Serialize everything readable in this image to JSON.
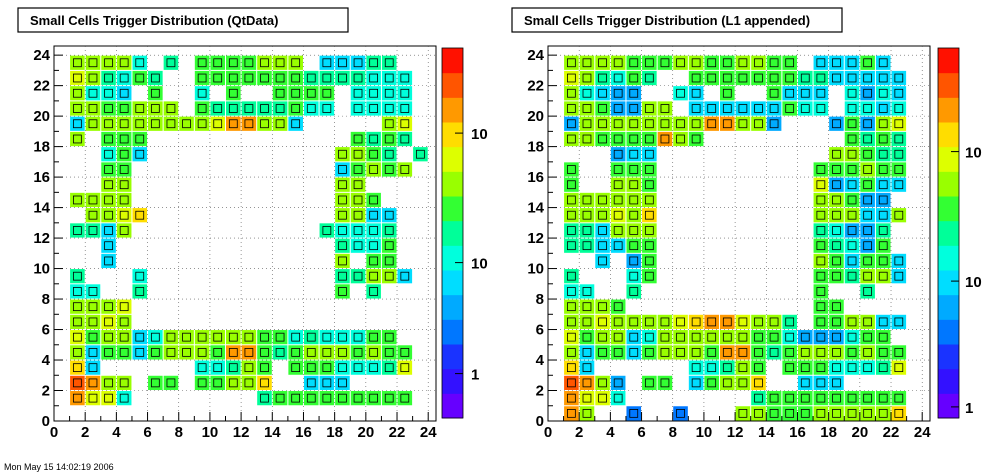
{
  "chart_data": [
    {
      "type": "heatmap",
      "title": "Small Cells Trigger Distribution (QtData)",
      "xlim": [
        0,
        24.5
      ],
      "ylim": [
        0,
        24.6
      ],
      "x_ticks": [
        0,
        2,
        4,
        6,
        8,
        10,
        12,
        14,
        16,
        18,
        20,
        22,
        24
      ],
      "y_ticks": [
        0,
        2,
        4,
        6,
        8,
        10,
        12,
        14,
        16,
        18,
        20,
        22,
        24
      ],
      "z_scale": "log",
      "z_ticks": [
        {
          "label": "1",
          "frac": 0.12
        },
        {
          "label": "10",
          "frac": 0.42
        },
        {
          "label": "10",
          "frac": 0.77
        }
      ],
      "grid": true,
      "box_text": true,
      "cells": "1,1,1.5;2,1,1.3;3,1,1.3;4,1,0.8;13,1,0.9;14,1,1.0;15,1,1.0;16,1,1.0;17,1,1.0;18,1,1.0;19,1,1.0;20,1,1.0;21,1,1.0;22,1,1.0;1,2,1.7;2,2,1.5;3,2,1.1;4,2,1.1;6,2,1.0;7,2,1.0;9,2,1.0;10,2,1.0;11,2,1.2;12,2,1.2;13,2,1.4;16,2,0.6;17,2,0.6;18,2,0.6;1,3,1.4;2,3,0.7;9,3,0.8;10,3,0.8;11,3,0.9;12,3,1.1;13,3,1.0;15,3,1.0;16,3,1.0;17,3,1.0;18,3,0.8;19,3,0.8;20,3,0.8;21,3,0.9;22,3,1.3;1,4,1.1;2,4,0.7;3,4,1.0;4,4,1.0;5,4,0.6;6,4,1.0;7,4,1.1;8,4,1.1;9,4,1.1;10,4,1.0;11,4,1.5;12,4,1.5;13,4,1.0;14,4,0.9;15,4,1.0;16,4,1.2;17,4,1.2;18,4,1.2;19,4,1.0;20,4,1.2;21,4,1.0;22,4,1.0;1,5,1.3;2,5,1.0;3,5,1.1;4,5,1.1;5,5,0.7;6,5,0.8;7,5,1.2;8,5,1.2;9,5,1.2;10,5,1.2;11,5,1.2;12,5,1.2;13,5,1.0;14,5,1.0;15,5,0.8;16,5,0.9;17,5,0.8;18,5,0.8;19,5,0.8;20,5,1.0;21,5,1.0;1,6,1.2;2,6,1.2;3,6,1.3;4,6,1.1;1,7,1.2;2,7,1.2;3,7,1.2;4,7,1.3;1,8,0.8;2,8,0.8;5,8,0.9;18,8,1.0;20,8,0.9;1,9,0.9;5,9,0.8;18,9,0.9;19,9,0.9;20,9,1.1;21,9,1.2;22,9,0.6;3,10,0.7;18,10,1.1;20,10,1.0;21,10,1.0;3,11,0.7;18,11,0.9;19,11,0.8;20,11,0.8;21,11,1.0;1,12,0.9;2,12,0.9;3,12,0.7;4,12,1.1;17,12,0.9;18,12,0.8;19,12,0.8;20,12,0.8;21,12,0.9;2,13,1.1;3,13,1.2;4,13,1.3;5,13,1.4;18,13,1.1;19,13,1.2;20,13,0.6;21,13,0.7;1,14,1.2;2,14,1.2;3,14,1.2;4,14,1.1;18,14,1.2;19,14,1.1;20,14,1.0;3,15,1.2;4,15,1.2;18,15,1.2;19,15,1.1;3,16,1.0;4,16,1.0;18,16,0.6;19,16,1.0;20,16,1.1;21,16,1.0;22,16,1.1;3,17,0.8;4,17,1.0;5,17,0.6;18,17,1.1;19,17,1.1;20,17,1.0;21,17,0.9;23,17,0.9;1,18,1.2;3,18,1.0;4,18,1.0;5,18,1.0;19,18,1.0;20,18,0.9;21,18,1.0;22,18,0.9;1,19,0.7;2,19,1.2;3,19,1.2;4,19,1.1;5,19,1.1;6,19,1.2;7,19,1.2;8,19,1.1;9,19,1.2;10,19,1.3;11,19,1.6;12,19,1.6;13,19,1.2;14,19,1.2;15,19,0.7;21,19,1.2;22,19,1.3;1,20,1.1;2,20,1.1;3,20,1.0;4,20,1.0;5,20,1.2;6,20,1.1;7,20,1.2;9,20,1.0;10,20,0.9;11,20,0.9;12,20,0.9;13,20,0.9;14,20,0.9;15,20,1.0;16,20,0.8;17,20,0.8;19,20,0.8;20,20,0.8;21,20,0.8;22,20,0.8;1,21,1.2;2,21,0.8;3,21,0.8;4,21,0.7;6,21,1.0;9,21,0.8;11,21,1.0;14,21,1.0;15,21,1.0;16,21,1.0;17,21,1.0;19,21,0.8;20,21,0.8;21,21,0.8;22,21,0.8;1,22,1.3;2,22,1.1;3,22,0.9;4,22,0.8;5,22,1.0;6,22,0.9;9,22,1.0;10,22,1.0;11,22,1.0;12,22,1.0;13,22,1.0;14,22,1.0;15,22,1.0;16,22,0.9;17,22,0.9;18,22,0.9;19,22,0.9;20,22,0.8;21,22,0.8;22,22,0.8;1,23,1.2;2,23,1.2;3,23,1.2;4,23,1.2;5,23,0.8;7,23,0.9;9,23,1.0;10,23,1.0;11,23,1.0;12,23,1.0;13,23,1.1;14,23,1.1;15,23,1.1;17,23,0.7;18,23,0.7;19,23,0.7;20,23,0.9;21,23,0.9"
    },
    {
      "type": "heatmap",
      "title": "Small Cells Trigger Distribution (L1 appended)",
      "xlim": [
        0,
        24.5
      ],
      "ylim": [
        0,
        24.6
      ],
      "x_ticks": [
        0,
        2,
        4,
        6,
        8,
        10,
        12,
        14,
        16,
        18,
        20,
        22,
        24
      ],
      "y_ticks": [
        0,
        2,
        4,
        6,
        8,
        10,
        12,
        14,
        16,
        18,
        20,
        22,
        24
      ],
      "z_scale": "log",
      "z_ticks": [
        {
          "label": "1",
          "frac": 0.03
        },
        {
          "label": "10",
          "frac": 0.37
        },
        {
          "label": "10",
          "frac": 0.72
        }
      ],
      "grid": true,
      "box_text": true,
      "cells": "1,0,1.5;2,0,1.2;5,0,0.4;8,0,0.4;12,0,1.2;13,0,1.1;14,0,1.0;15,0,1.0;16,0,1.0;17,0,1.1;18,0,1.1;19,0,1.1;20,0,1.1;21,0,1.1;22,0,1.4;1,1,1.5;2,1,1.3;3,1,1.3;4,1,0.8;13,1,0.9;14,1,1.0;15,1,1.0;16,1,1.0;17,1,1.0;18,1,1.0;19,1,1.0;20,1,1.0;21,1,1.0;22,1,1.0;1,2,1.7;2,2,1.5;3,2,1.1;4,2,0.5;6,2,1.0;7,2,1.0;9,2,0.6;10,2,1.0;11,2,1.2;12,2,1.2;13,2,1.4;16,2,0.6;17,2,0.6;18,2,0.6;1,3,1.4;2,3,0.7;9,3,0.8;10,3,0.8;11,3,0.9;12,3,1.1;13,3,1.0;15,3,1.0;16,3,1.0;17,3,1.0;18,3,0.8;19,3,0.8;20,3,0.8;21,3,0.9;22,3,1.3;1,4,1.1;2,4,0.7;3,4,1.0;4,4,1.0;5,4,0.6;6,4,1.0;7,4,1.1;8,4,1.1;9,4,1.1;10,4,1.0;11,4,1.5;12,4,1.5;13,4,1.0;14,4,0.9;15,4,1.0;16,4,1.2;17,4,1.2;18,4,1.2;19,4,1.0;20,4,1.2;21,4,1.0;22,4,1.0;1,5,1.3;2,5,1.0;3,5,1.1;4,5,1.1;5,5,0.7;6,5,0.8;7,5,1.2;8,5,1.2;9,5,1.2;10,5,1.2;11,5,1.2;12,5,1.2;13,5,1.0;14,5,1.0;15,5,0.8;16,5,0.5;17,5,0.5;18,5,0.5;19,5,0.8;20,5,1.0;21,5,1.0;1,6,1.2;2,6,1.2;3,6,1.3;4,6,1.1;5,6,1.2;6,6,1.2;7,6,1.2;8,6,1.3;9,6,1.4;10,6,1.6;11,6,1.6;12,6,1.3;13,6,1.2;14,6,1.1;15,6,0.9;17,6,1.0;18,6,1.0;19,6,1.1;20,6,1.1;21,6,0.6;22,6,0.7;1,7,1.2;2,7,1.2;3,7,1.2;4,7,1.0;17,7,1.0;18,7,1.0;1,8,0.8;2,8,0.8;5,8,0.9;17,8,1.0;20,8,0.9;1,9,0.9;5,9,0.8;6,9,1.0;17,9,1.0;18,9,1.0;19,9,0.9;20,9,1.1;21,9,1.2;22,9,0.6;3,10,0.7;5,10,0.5;6,10,1.0;17,10,1.1;18,10,1.0;19,10,0.6;20,10,1.0;21,10,1.0;22,10,0.6;1,11,0.9;2,11,0.9;3,11,0.6;4,11,0.6;5,11,1.0;6,11,1.0;17,11,1.0;18,11,0.9;19,11,0.8;20,11,0.5;21,11,1.0;1,12,0.9;2,12,0.9;3,12,0.7;4,12,1.1;5,12,1.2;6,12,1.2;17,12,0.9;18,12,0.8;19,12,0.5;20,12,0.5;21,12,0.9;1,13,1.1;2,13,1.2;3,13,1.2;4,13,1.3;5,13,1.2;6,13,1.4;17,13,1.1;18,13,1.2;19,13,1.2;20,13,0.6;21,13,0.7;22,13,1.1;1,14,1.2;2,14,1.2;3,14,1.2;4,14,1.1;5,14,1.2;6,14,1.1;17,14,1.2;18,14,1.1;19,14,1.0;20,14,0.5;21,14,0.5;1,15,1.0;4,15,1.2;5,15,1.2;6,15,1.0;17,15,1.3;18,15,0.5;19,15,0.6;20,15,1.0;21,15,0.6;22,15,0.7;1,16,1.0;4,16,1.0;5,16,1.0;6,16,1.0;17,16,1.0;18,16,1.0;19,16,1.0;20,16,1.1;21,16,1.0;22,16,1.0;4,17,0.5;5,17,0.6;6,17,0.6;18,17,1.1;19,17,1.1;20,17,1.0;21,17,0.9;22,17,0.9;1,18,1.2;2,18,1.1;3,18,1.0;4,18,1.0;5,18,1.0;6,18,1.0;7,18,1.5;8,18,1.1;9,18,1.0;19,18,1.0;20,18,0.9;21,18,1.0;22,18,0.9;1,19,0.5;2,19,1.2;3,19,1.2;4,19,1.1;5,19,1.1;6,19,1.2;7,19,1.2;8,19,1.1;9,19,1.2;10,19,1.5;11,19,1.5;12,19,1.2;13,19,1.1;14,19,0.5;18,19,0.5;19,19,1.0;20,19,0.5;21,19,1.2;22,19,1.3;1,20,1.1;2,20,1.1;3,20,1.0;4,20,0.5;5,20,0.5;6,20,1.1;7,20,1.2;9,20,0.6;10,20,0.6;11,20,0.6;12,20,0.6;13,20,0.6;14,20,0.6;15,20,1.0;16,20,0.8;17,20,0.8;19,20,0.8;20,20,0.8;21,20,0.6;22,20,0.8;1,21,1.2;2,21,0.8;3,21,0.6;4,21,0.5;5,21,0.5;8,21,0.8;9,21,0.6;11,21,1.0;14,21,1.0;15,21,0.6;16,21,0.6;17,21,0.6;19,21,0.8;20,21,0.5;21,21,0.8;22,21,0.6;1,22,1.3;2,22,1.1;3,22,0.9;4,22,0.8;5,22,1.0;6,22,0.9;9,22,1.0;10,22,1.0;11,22,1.0;12,22,1.0;13,22,1.0;14,22,1.0;15,22,1.0;16,22,0.9;17,22,0.9;18,22,0.6;19,22,0.6;20,22,0.6;21,22,0.6;22,22,0.6;1,23,1.2;2,23,1.1;3,23,1.1;4,23,1.1;5,23,1.0;6,23,1.0;7,23,1.0;8,23,1.1;9,23,1.1;10,23,1.0;11,23,1.0;12,23,1.1;13,23,1.1;14,23,1.0;15,23,1.0;17,23,0.6;18,23,0.6;19,23,0.7;20,23,1.0;21,23,0.6"
    }
  ],
  "palette": [
    "#6600ff",
    "#3311ff",
    "#1a33ff",
    "#0077ff",
    "#00aaff",
    "#00ddff",
    "#00ffdd",
    "#00ff99",
    "#33ff33",
    "#99ff00",
    "#ddff00",
    "#ffdd00",
    "#ff9900",
    "#ff5500",
    "#ff1100"
  ],
  "footer_text": "Mon May 15 14:02:19 2006"
}
